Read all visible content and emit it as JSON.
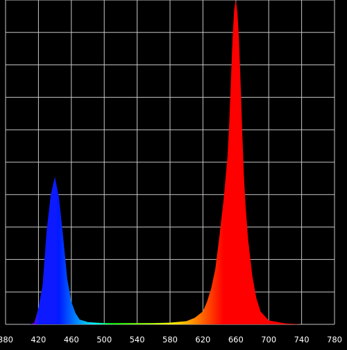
{
  "chart_data": {
    "type": "area",
    "title": "",
    "xlabel": "",
    "ylabel": "",
    "xlim": [
      380,
      780
    ],
    "ylim": [
      0,
      1
    ],
    "x_ticks": [
      380,
      420,
      460,
      500,
      540,
      580,
      620,
      660,
      700,
      740,
      780
    ],
    "x_tick_labels": [
      "380",
      "420",
      "460",
      "500",
      "540",
      "580",
      "620",
      "660",
      "700",
      "740",
      "780"
    ],
    "y_grid_lines": 10,
    "grid": true,
    "legend": "none",
    "colors": {
      "background": "#000000",
      "grid": "#c8c8c8",
      "axis_text": "#ffffff"
    },
    "series": [
      {
        "fill": "wavelength-colored",
        "x": [
          380,
          410,
          415,
          420,
          425,
          430,
          435,
          440,
          445,
          450,
          455,
          460,
          465,
          470,
          480,
          490,
          500,
          520,
          540,
          560,
          580,
          600,
          610,
          620,
          625,
          630,
          635,
          640,
          645,
          650,
          652,
          654,
          656,
          658,
          660,
          662,
          664,
          666,
          668,
          670,
          672,
          675,
          680,
          685,
          690,
          700,
          720,
          740,
          780
        ],
        "y": [
          0,
          0,
          0.005,
          0.05,
          0.12,
          0.29,
          0.4,
          0.455,
          0.39,
          0.27,
          0.14,
          0.07,
          0.035,
          0.015,
          0.007,
          0.005,
          0.004,
          0.004,
          0.004,
          0.004,
          0.005,
          0.01,
          0.02,
          0.04,
          0.07,
          0.11,
          0.17,
          0.27,
          0.38,
          0.52,
          0.62,
          0.75,
          0.88,
          0.97,
          1.0,
          0.96,
          0.87,
          0.73,
          0.58,
          0.45,
          0.36,
          0.26,
          0.15,
          0.08,
          0.04,
          0.012,
          0.003,
          0,
          0
        ]
      }
    ]
  }
}
